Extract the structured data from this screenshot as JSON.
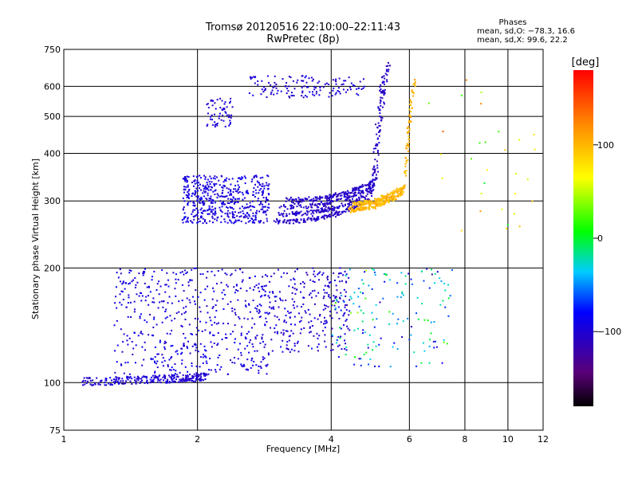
{
  "title": {
    "line1": "Tromsø 20120516 22:10:00–22:11:43",
    "line2": "RwPretec (8p)"
  },
  "phases_box": {
    "header": "Phases",
    "line1": "mean, sd,O: −78.3, 16.6",
    "line2": "mean, sd,X:  99.6, 22.2"
  },
  "colorbar": {
    "label": "[deg]",
    "ticks": [
      "100",
      "0",
      "−100"
    ],
    "tick_values": [
      100,
      0,
      -100
    ],
    "range": [
      -180,
      180
    ]
  },
  "chart_data": {
    "type": "scatter",
    "xlabel": "Frequency [MHz]",
    "ylabel": "Stationary phase Virtual Height [km]",
    "x_scale": "log",
    "y_scale": "log",
    "xlim": [
      1,
      12
    ],
    "ylim": [
      75,
      750
    ],
    "x_ticks": [
      1,
      2,
      4,
      6,
      8,
      10,
      12
    ],
    "x_tick_labels": [
      "1",
      "2",
      "4",
      "6",
      "8",
      "10",
      "12"
    ],
    "y_ticks": [
      75,
      100,
      200,
      300,
      400,
      500,
      600,
      750
    ],
    "y_tick_labels": [
      "75",
      "100",
      "200",
      "300",
      "400",
      "500",
      "600",
      "750"
    ],
    "grid": true,
    "colorscale": "rainbow: black(-180) → violet → blue → cyan → green(0) → yellow → orange → red(180)",
    "features": [
      {
        "name": "F-region O-mode trace",
        "x_range": [
          2.0,
          5.3
        ],
        "height_range": [
          260,
          650
        ],
        "phase_deg": -100
      },
      {
        "name": "F-region X-mode trace",
        "x_range": [
          4.4,
          6.2
        ],
        "height_range": [
          290,
          640
        ],
        "phase_deg": 100
      },
      {
        "name": "spread F patch",
        "x_range": [
          1.8,
          2.9
        ],
        "height_range": [
          260,
          350
        ],
        "phase_deg": -90
      },
      {
        "name": "E-region trace",
        "x_range": [
          1.1,
          2.0
        ],
        "height_range": [
          95,
          105
        ],
        "phase_deg": -100
      },
      {
        "name": "sporadic/ E-F scatter",
        "x_range": [
          1.3,
          7.5
        ],
        "height_range": [
          110,
          200
        ],
        "phase_deg": -60
      }
    ]
  }
}
